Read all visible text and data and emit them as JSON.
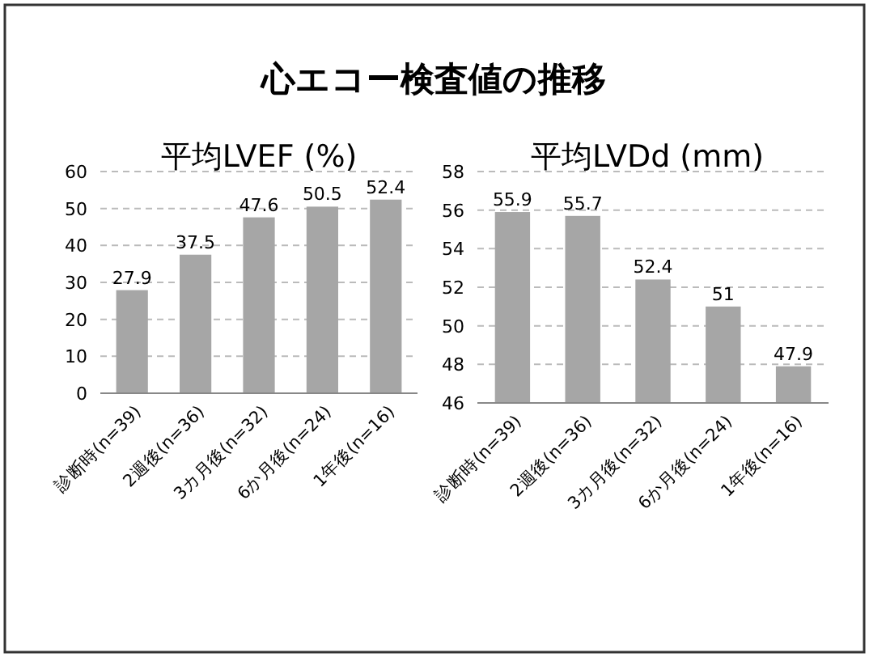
{
  "chart_data": [
    {
      "type": "bar",
      "title": "心エコー検査値の推移",
      "subtitle": "平均LVEF (%)",
      "categories": [
        "診断時(n=39)",
        "2週後(n=36)",
        "3カ月後(n=32)",
        "6か月後(n=24)",
        "1年後(n=16)"
      ],
      "values": [
        27.9,
        37.5,
        47.6,
        50.5,
        52.4
      ],
      "color": "#a6a6a6",
      "ylim": [
        0,
        60
      ],
      "yticks": [
        0,
        10,
        20,
        30,
        40,
        50,
        60
      ],
      "grid": "y",
      "data_labels": true
    },
    {
      "type": "bar",
      "title": "平均LVDd (mm)",
      "categories": [
        "診断時(n=39)",
        "2週後(n=36)",
        "3カ月後(n=32)",
        "6か月後(n=24)",
        "1年後(n=16)"
      ],
      "values": [
        55.9,
        55.7,
        52.4,
        51,
        47.9
      ],
      "color": "#a6a6a6",
      "ylim": [
        46,
        58
      ],
      "yticks": [
        46,
        48,
        50,
        52,
        54,
        56,
        58
      ],
      "grid": "y",
      "data_labels": true
    }
  ]
}
